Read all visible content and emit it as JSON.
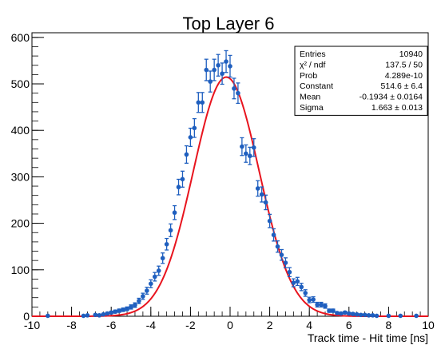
{
  "chart_data": {
    "type": "scatter",
    "title": "Top Layer 6",
    "xlabel": "Track time - Hit time [ns]",
    "ylabel": "",
    "xlim": [
      -10,
      10
    ],
    "ylim": [
      0,
      610
    ],
    "x_ticks": [
      -10,
      -8,
      -6,
      -4,
      -2,
      0,
      2,
      4,
      6,
      8,
      10
    ],
    "x_tick_labels": [
      "-10",
      "-8",
      "-6",
      "-4",
      "-2",
      "0",
      "2",
      "4",
      "6",
      "8",
      "10"
    ],
    "y_ticks": [
      0,
      100,
      200,
      300,
      400,
      500,
      600
    ],
    "y_tick_labels": [
      "0",
      "100",
      "200",
      "300",
      "400",
      "500",
      "600"
    ],
    "grid": false,
    "legend": "none",
    "colors": {
      "points": "#1f5fbf",
      "fit": "#e8141e",
      "frame": "#000000"
    },
    "series": [
      {
        "type": "scatter",
        "x": [
          -9.2,
          -7.4,
          -7.2,
          -6.8,
          -6.6,
          -6.4,
          -6.2,
          -6.0,
          -5.8,
          -5.6,
          -5.4,
          -5.2,
          -5.0,
          -4.8,
          -4.6,
          -4.4,
          -4.2,
          -4.0,
          -3.8,
          -3.6,
          -3.4,
          -3.2,
          -3.0,
          -2.8,
          -2.6,
          -2.4,
          -2.2,
          -2.0,
          -1.8,
          -1.6,
          -1.4,
          -1.2,
          -1.0,
          -0.8,
          -0.6,
          -0.4,
          -0.2,
          0.0,
          0.2,
          0.4,
          0.6,
          0.8,
          1.0,
          1.2,
          1.4,
          1.6,
          1.8,
          2.0,
          2.2,
          2.4,
          2.6,
          2.8,
          3.0,
          3.2,
          3.4,
          3.6,
          3.8,
          4.0,
          4.2,
          4.4,
          4.6,
          4.8,
          5.0,
          5.2,
          5.4,
          5.6,
          5.8,
          6.0,
          6.2,
          6.4,
          6.6,
          6.8,
          7.0,
          7.2,
          7.4,
          8.0,
          8.6,
          9.4
        ],
        "y": [
          1,
          1,
          2,
          3,
          2,
          4,
          6,
          8,
          10,
          12,
          14,
          16,
          20,
          24,
          33,
          43,
          55,
          70,
          85,
          98,
          125,
          155,
          185,
          223,
          278,
          295,
          348,
          385,
          405,
          460,
          460,
          530,
          505,
          530,
          540,
          522,
          548,
          538,
          490,
          480,
          365,
          350,
          345,
          363,
          275,
          262,
          245,
          205,
          175,
          150,
          132,
          115,
          95,
          72,
          75,
          63,
          50,
          35,
          36,
          25,
          25,
          22,
          12,
          12,
          7,
          6,
          8,
          6,
          5,
          4,
          3,
          3,
          2,
          2,
          1,
          1,
          1,
          1
        ],
        "err": [
          1,
          1,
          1.4,
          1.7,
          1.4,
          2,
          2.4,
          2.8,
          3.2,
          3.5,
          3.7,
          4,
          4.5,
          4.9,
          5.7,
          6.6,
          7.4,
          8.4,
          9.2,
          9.9,
          11.2,
          12.4,
          13.6,
          14.9,
          16.7,
          17.2,
          18.7,
          19.6,
          20.1,
          21.4,
          21.4,
          23,
          22.5,
          23,
          23.2,
          22.8,
          23.4,
          23.2,
          22.1,
          21.9,
          19.1,
          18.7,
          18.6,
          19,
          16.6,
          16.2,
          15.7,
          14.3,
          13.2,
          12.2,
          11.5,
          10.7,
          9.7,
          8.5,
          8.7,
          7.9,
          7.1,
          5.9,
          6,
          5,
          5,
          4.7,
          3.5,
          3.5,
          2.6,
          2.4,
          2.8,
          2.4,
          2.2,
          2,
          1.7,
          1.7,
          1.4,
          1.4,
          1,
          1,
          1,
          1
        ]
      },
      {
        "type": "fit",
        "name": "gaus",
        "constant": 514.6,
        "mean": -0.1934,
        "sigma": 1.663
      }
    ],
    "stats_box": {
      "rows": [
        {
          "label": "Entries",
          "value": "10940"
        },
        {
          "label": "χ² / ndf",
          "value": "137.5 / 50"
        },
        {
          "label": "Prob",
          "value": "4.289e-10"
        },
        {
          "label": "Constant",
          "value": "514.6 ± 6.4"
        },
        {
          "label": "Mean",
          "value": "-0.1934 ± 0.0164"
        },
        {
          "label": "Sigma",
          "value": "1.663 ± 0.013"
        }
      ]
    }
  }
}
